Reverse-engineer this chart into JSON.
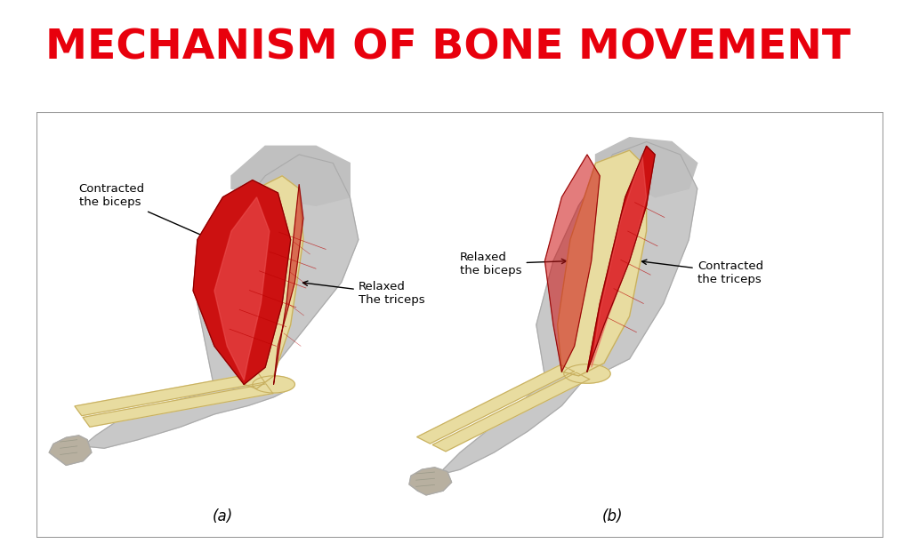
{
  "title": "MECHANISM OF BONE MOVEMENT",
  "title_color": "#e8000d",
  "title_fontsize": 34,
  "title_fontweight": "bold",
  "bg_color": "#ffffff",
  "panel_bg": "#ffffff",
  "border_color": "#999999",
  "label_a": "(a)",
  "label_b": "(b)",
  "skin_gray": "#c8c8c8",
  "skin_outline": "#aaaaaa",
  "bone_color": "#e8dca0",
  "bone_outline": "#c8b060",
  "muscle_red_dark": "#cc1111",
  "muscle_red_mid": "#dd2222",
  "muscle_red_light": "#ee5555",
  "muscle_fiber": "#bb0000",
  "text_contracted_biceps_a": "Contracted\nthe biceps",
  "text_relaxed_triceps_a": "Relaxed\nThe triceps",
  "text_relaxed_biceps_b": "Relaxed\nthe biceps",
  "text_contracted_triceps_b": "Contracted\nthe triceps"
}
